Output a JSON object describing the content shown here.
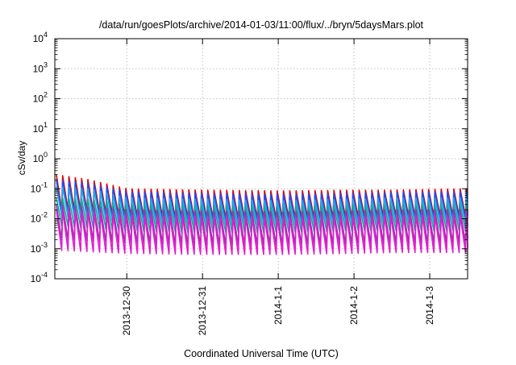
{
  "chart_data": {
    "type": "line",
    "title": "/data/run/goesPlots/archive/2014-01-03/11:00/flux/../bryn/5daysMars.plot",
    "xlabel": "Coordinated Universal Time (UTC)",
    "ylabel": "cSv/day",
    "yscale": "log",
    "ylim": [
      0.0001,
      10000
    ],
    "xlim": [
      -1.95,
      3.5
    ],
    "grid": true,
    "y_ticks": [
      {
        "value": 0.0001,
        "base": "10",
        "exp": "-4"
      },
      {
        "value": 0.001,
        "base": "10",
        "exp": "-3"
      },
      {
        "value": 0.01,
        "base": "10",
        "exp": "-2"
      },
      {
        "value": 0.1,
        "base": "10",
        "exp": "-1"
      },
      {
        "value": 1,
        "base": "10",
        "exp": "0"
      },
      {
        "value": 10,
        "base": "10",
        "exp": "1"
      },
      {
        "value": 100,
        "base": "10",
        "exp": "2"
      },
      {
        "value": 1000,
        "base": "10",
        "exp": "3"
      },
      {
        "value": 10000,
        "base": "10",
        "exp": "4"
      }
    ],
    "x_ticks": [
      {
        "value": -1,
        "label": "2013-12-30"
      },
      {
        "value": 0,
        "label": "2013-12-31"
      },
      {
        "value": 1,
        "label": "2014-1-1"
      },
      {
        "value": 2,
        "label": "2014-1-2"
      },
      {
        "value": 3,
        "label": "2014-1-3"
      }
    ],
    "pattern": {
      "period_days": 0.0833,
      "phase_days": -1.93,
      "trough_fraction": 0.85,
      "note": "Sawtooth: linear ramp down from peak to trough, then sharp recovery each period (values approximated from plot)."
    },
    "series": [
      {
        "name": "red",
        "color": "#dd0000",
        "peak_anchors": [
          [
            -1.95,
            0.3
          ],
          [
            -1.5,
            0.2
          ],
          [
            -1.0,
            0.1
          ],
          [
            0.0,
            0.09
          ],
          [
            1.0,
            0.085
          ],
          [
            2.0,
            0.09
          ],
          [
            2.5,
            0.09
          ],
          [
            3.5,
            0.1
          ]
        ],
        "trough_anchors": [
          [
            -1.95,
            0.02
          ],
          [
            -1.5,
            0.018
          ],
          [
            -1.0,
            0.012
          ],
          [
            0.0,
            0.01
          ],
          [
            1.0,
            0.01
          ],
          [
            2.0,
            0.011
          ],
          [
            2.5,
            0.012
          ],
          [
            3.5,
            0.012
          ]
        ]
      },
      {
        "name": "blue",
        "color": "#1a4fff",
        "peak_anchors": [
          [
            -1.95,
            0.2
          ],
          [
            -1.5,
            0.15
          ],
          [
            -1.0,
            0.08
          ],
          [
            0.0,
            0.07
          ],
          [
            1.0,
            0.065
          ],
          [
            2.0,
            0.07
          ],
          [
            2.5,
            0.075
          ],
          [
            3.5,
            0.08
          ]
        ],
        "trough_anchors": [
          [
            -1.95,
            0.015
          ],
          [
            -1.5,
            0.012
          ],
          [
            -1.0,
            0.009
          ],
          [
            0.0,
            0.008
          ],
          [
            1.0,
            0.0075
          ],
          [
            2.0,
            0.008
          ],
          [
            2.5,
            0.009
          ],
          [
            3.5,
            0.009
          ]
        ]
      },
      {
        "name": "sky-blue",
        "color": "#22a8e6",
        "peak_anchors": [
          [
            -1.95,
            0.12
          ],
          [
            -1.5,
            0.1
          ],
          [
            -1.0,
            0.05
          ],
          [
            0.0,
            0.045
          ],
          [
            1.0,
            0.04
          ],
          [
            2.0,
            0.045
          ],
          [
            2.5,
            0.05
          ],
          [
            3.5,
            0.05
          ]
        ],
        "trough_anchors": [
          [
            -1.95,
            0.012
          ],
          [
            -1.5,
            0.01
          ],
          [
            -1.0,
            0.007
          ],
          [
            0.0,
            0.006
          ],
          [
            1.0,
            0.006
          ],
          [
            2.0,
            0.0065
          ],
          [
            2.5,
            0.007
          ],
          [
            3.5,
            0.007
          ]
        ]
      },
      {
        "name": "teal",
        "color": "#12a89a",
        "peak_anchors": [
          [
            -1.95,
            0.05
          ],
          [
            -1.5,
            0.045
          ],
          [
            -1.0,
            0.03
          ],
          [
            0.0,
            0.028
          ],
          [
            1.0,
            0.025
          ],
          [
            2.0,
            0.028
          ],
          [
            2.5,
            0.03
          ],
          [
            3.5,
            0.03
          ]
        ],
        "trough_anchors": [
          [
            -1.95,
            0.006
          ],
          [
            -1.5,
            0.005
          ],
          [
            -1.0,
            0.004
          ],
          [
            0.0,
            0.0035
          ],
          [
            1.0,
            0.0035
          ],
          [
            2.0,
            0.004
          ],
          [
            2.5,
            0.004
          ],
          [
            3.5,
            0.004
          ]
        ]
      },
      {
        "name": "purple",
        "color": "#9b2fae",
        "peak_anchors": [
          [
            -1.95,
            0.03
          ],
          [
            -1.5,
            0.025
          ],
          [
            -1.0,
            0.02
          ],
          [
            0.0,
            0.018
          ],
          [
            1.0,
            0.017
          ],
          [
            2.0,
            0.018
          ],
          [
            2.5,
            0.02
          ],
          [
            3.5,
            0.02
          ]
        ],
        "trough_anchors": [
          [
            -1.95,
            0.002
          ],
          [
            -1.5,
            0.0018
          ],
          [
            -1.0,
            0.0015
          ],
          [
            0.0,
            0.0013
          ],
          [
            1.0,
            0.0013
          ],
          [
            2.0,
            0.0014
          ],
          [
            2.5,
            0.0015
          ],
          [
            3.5,
            0.0015
          ]
        ]
      },
      {
        "name": "magenta",
        "color": "#e31cd0",
        "peak_anchors": [
          [
            -1.95,
            0.02
          ],
          [
            -1.5,
            0.017
          ],
          [
            -1.0,
            0.013
          ],
          [
            0.0,
            0.012
          ],
          [
            1.0,
            0.011
          ],
          [
            2.0,
            0.012
          ],
          [
            2.5,
            0.013
          ],
          [
            3.5,
            0.013
          ]
        ],
        "trough_anchors": [
          [
            -1.95,
            0.0009
          ],
          [
            -1.5,
            0.0008
          ],
          [
            -1.0,
            0.0007
          ],
          [
            0.0,
            0.00065
          ],
          [
            1.0,
            0.00065
          ],
          [
            2.0,
            0.0007
          ],
          [
            2.5,
            0.00075
          ],
          [
            3.5,
            0.00075
          ]
        ]
      }
    ]
  }
}
